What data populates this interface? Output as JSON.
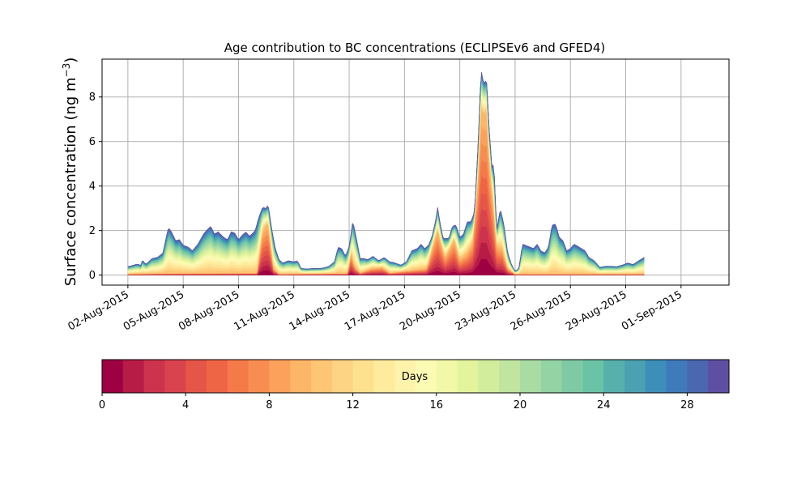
{
  "chart_data": {
    "type": "area",
    "stacked": true,
    "title": "Age contribution to BC concentrations (ECLIPSEv6 and GFED4)",
    "ylabel_main": "Surface concentration (ng m",
    "ylabel_sup": "−3",
    "ylabel_close": ")",
    "xlabel": "",
    "xlim_days": [
      -0.4,
      33.6
    ],
    "ylim": [
      -0.45,
      9.7
    ],
    "grid": true,
    "y_ticks": [
      0,
      2,
      4,
      6,
      8
    ],
    "x_ticks": [
      {
        "day": 1,
        "label": "02-Aug-2015"
      },
      {
        "day": 4,
        "label": "05-Aug-2015"
      },
      {
        "day": 7,
        "label": "08-Aug-2015"
      },
      {
        "day": 10,
        "label": "11-Aug-2015"
      },
      {
        "day": 13,
        "label": "14-Aug-2015"
      },
      {
        "day": 16,
        "label": "17-Aug-2015"
      },
      {
        "day": 19,
        "label": "20-Aug-2015"
      },
      {
        "day": 22,
        "label": "23-Aug-2015"
      },
      {
        "day": 25,
        "label": "26-Aug-2015"
      },
      {
        "day": 28,
        "label": "29-Aug-2015"
      },
      {
        "day": 31,
        "label": "01-Sep-2015"
      }
    ],
    "x_day_offset_note": "x values are days since 01-Aug-2015 00:00",
    "total_envelope": [
      [
        1.0,
        0.38
      ],
      [
        1.3,
        0.45
      ],
      [
        1.5,
        0.5
      ],
      [
        1.7,
        0.45
      ],
      [
        1.8,
        0.7
      ],
      [
        1.9,
        0.55
      ],
      [
        2.0,
        0.5
      ],
      [
        2.3,
        0.75
      ],
      [
        2.6,
        0.8
      ],
      [
        2.9,
        1.0
      ],
      [
        3.1,
        1.8
      ],
      [
        3.2,
        2.15
      ],
      [
        3.4,
        1.9
      ],
      [
        3.6,
        1.55
      ],
      [
        3.8,
        1.6
      ],
      [
        4.0,
        1.35
      ],
      [
        4.3,
        1.25
      ],
      [
        4.5,
        1.1
      ],
      [
        4.8,
        1.4
      ],
      [
        5.1,
        1.85
      ],
      [
        5.3,
        2.05
      ],
      [
        5.5,
        2.2
      ],
      [
        5.7,
        1.85
      ],
      [
        5.9,
        1.95
      ],
      [
        6.2,
        1.7
      ],
      [
        6.4,
        1.6
      ],
      [
        6.6,
        1.95
      ],
      [
        6.8,
        1.9
      ],
      [
        7.0,
        1.6
      ],
      [
        7.2,
        1.8
      ],
      [
        7.4,
        1.95
      ],
      [
        7.6,
        1.75
      ],
      [
        7.9,
        2.0
      ],
      [
        8.1,
        2.6
      ],
      [
        8.3,
        3.05
      ],
      [
        8.5,
        3.0
      ],
      [
        8.6,
        3.2
      ],
      [
        8.8,
        2.1
      ],
      [
        9.0,
        1.2
      ],
      [
        9.2,
        0.7
      ],
      [
        9.4,
        0.55
      ],
      [
        9.7,
        0.65
      ],
      [
        10.0,
        0.6
      ],
      [
        10.2,
        0.65
      ],
      [
        10.4,
        0.3
      ],
      [
        10.7,
        0.28
      ],
      [
        11.0,
        0.3
      ],
      [
        11.3,
        0.3
      ],
      [
        11.6,
        0.32
      ],
      [
        11.9,
        0.4
      ],
      [
        12.2,
        0.6
      ],
      [
        12.4,
        1.25
      ],
      [
        12.6,
        1.2
      ],
      [
        12.8,
        0.85
      ],
      [
        13.0,
        1.3
      ],
      [
        13.2,
        2.45
      ],
      [
        13.4,
        1.65
      ],
      [
        13.6,
        0.75
      ],
      [
        13.8,
        0.75
      ],
      [
        14.0,
        0.7
      ],
      [
        14.3,
        0.85
      ],
      [
        14.6,
        0.65
      ],
      [
        14.9,
        0.8
      ],
      [
        15.2,
        0.6
      ],
      [
        15.5,
        0.55
      ],
      [
        15.8,
        0.45
      ],
      [
        16.1,
        0.6
      ],
      [
        16.4,
        1.1
      ],
      [
        16.7,
        1.2
      ],
      [
        16.9,
        1.4
      ],
      [
        17.1,
        1.2
      ],
      [
        17.3,
        1.35
      ],
      [
        17.5,
        1.75
      ],
      [
        17.7,
        2.5
      ],
      [
        17.8,
        3.05
      ],
      [
        17.9,
        2.5
      ],
      [
        18.1,
        1.65
      ],
      [
        18.4,
        1.65
      ],
      [
        18.6,
        2.2
      ],
      [
        18.8,
        2.25
      ],
      [
        19.0,
        1.7
      ],
      [
        19.2,
        1.85
      ],
      [
        19.4,
        2.4
      ],
      [
        19.6,
        2.4
      ],
      [
        19.8,
        2.85
      ],
      [
        20.0,
        6.0
      ],
      [
        20.15,
        9.25
      ],
      [
        20.3,
        8.6
      ],
      [
        20.45,
        8.8
      ],
      [
        20.6,
        6.5
      ],
      [
        20.75,
        4.8
      ],
      [
        20.85,
        5.05
      ],
      [
        21.0,
        2.05
      ],
      [
        21.2,
        3.0
      ],
      [
        21.4,
        2.25
      ],
      [
        21.6,
        1.0
      ],
      [
        21.8,
        0.5
      ],
      [
        22.0,
        0.18
      ],
      [
        22.2,
        0.3
      ],
      [
        22.4,
        1.4
      ],
      [
        22.7,
        1.3
      ],
      [
        23.0,
        1.2
      ],
      [
        23.2,
        1.4
      ],
      [
        23.4,
        1.1
      ],
      [
        23.6,
        1.0
      ],
      [
        23.8,
        1.25
      ],
      [
        24.0,
        2.25
      ],
      [
        24.2,
        2.3
      ],
      [
        24.4,
        1.7
      ],
      [
        24.6,
        1.55
      ],
      [
        24.8,
        1.1
      ],
      [
        25.0,
        1.2
      ],
      [
        25.2,
        1.4
      ],
      [
        25.5,
        1.25
      ],
      [
        25.8,
        1.1
      ],
      [
        26.0,
        0.8
      ],
      [
        26.3,
        0.65
      ],
      [
        26.6,
        0.35
      ],
      [
        26.9,
        0.4
      ],
      [
        27.2,
        0.4
      ],
      [
        27.5,
        0.38
      ],
      [
        27.8,
        0.45
      ],
      [
        28.1,
        0.55
      ],
      [
        28.4,
        0.48
      ],
      [
        28.7,
        0.65
      ],
      [
        29.0,
        0.8
      ]
    ],
    "young_age_contribution_note": "red/orange core (ages under ~10 days) prominent during plumes",
    "young_envelope": [
      [
        1.0,
        0.05
      ],
      [
        3.0,
        0.08
      ],
      [
        8.0,
        0.1
      ],
      [
        8.3,
        2.0
      ],
      [
        8.6,
        2.35
      ],
      [
        8.9,
        0.3
      ],
      [
        9.2,
        0.05
      ],
      [
        12.9,
        0.08
      ],
      [
        13.1,
        1.0
      ],
      [
        13.3,
        0.4
      ],
      [
        13.6,
        0.1
      ],
      [
        14.2,
        0.3
      ],
      [
        14.8,
        0.35
      ],
      [
        15.2,
        0.1
      ],
      [
        17.2,
        0.3
      ],
      [
        17.6,
        1.5
      ],
      [
        17.8,
        2.0
      ],
      [
        18.2,
        0.8
      ],
      [
        18.7,
        1.6
      ],
      [
        19.0,
        0.7
      ],
      [
        19.4,
        1.0
      ],
      [
        19.7,
        1.5
      ],
      [
        20.0,
        4.5
      ],
      [
        20.15,
        7.6
      ],
      [
        20.3,
        7.2
      ],
      [
        20.45,
        7.4
      ],
      [
        20.6,
        5.2
      ],
      [
        20.8,
        3.4
      ],
      [
        21.0,
        1.3
      ],
      [
        21.3,
        1.2
      ],
      [
        21.6,
        0.3
      ],
      [
        22.0,
        0.05
      ],
      [
        29.0,
        0.05
      ]
    ],
    "colorbar": {
      "label": "Days",
      "range": [
        0,
        30
      ],
      "ticks": [
        0,
        4,
        8,
        12,
        16,
        20,
        24,
        28
      ],
      "n_bins": 30,
      "colormap": "Spectral",
      "colors": [
        "#9e0142",
        "#b71c46",
        "#cd334c",
        "#d8434e",
        "#e55648",
        "#ee6545",
        "#f57a4a",
        "#f88d52",
        "#fba15b",
        "#fdb567",
        "#fdc574",
        "#fdd384",
        "#fee18f",
        "#feeb9e",
        "#fff3ac",
        "#fbfbb4",
        "#f1f9a9",
        "#e3f49d",
        "#d2ed9b",
        "#bfe5a0",
        "#a9dca3",
        "#93d3a4",
        "#7fcaa5",
        "#6bc3a5",
        "#57b0ac",
        "#4ba0b1",
        "#3d8eb8",
        "#3f7abb",
        "#4a67b0",
        "#5e4fa2"
      ]
    }
  }
}
